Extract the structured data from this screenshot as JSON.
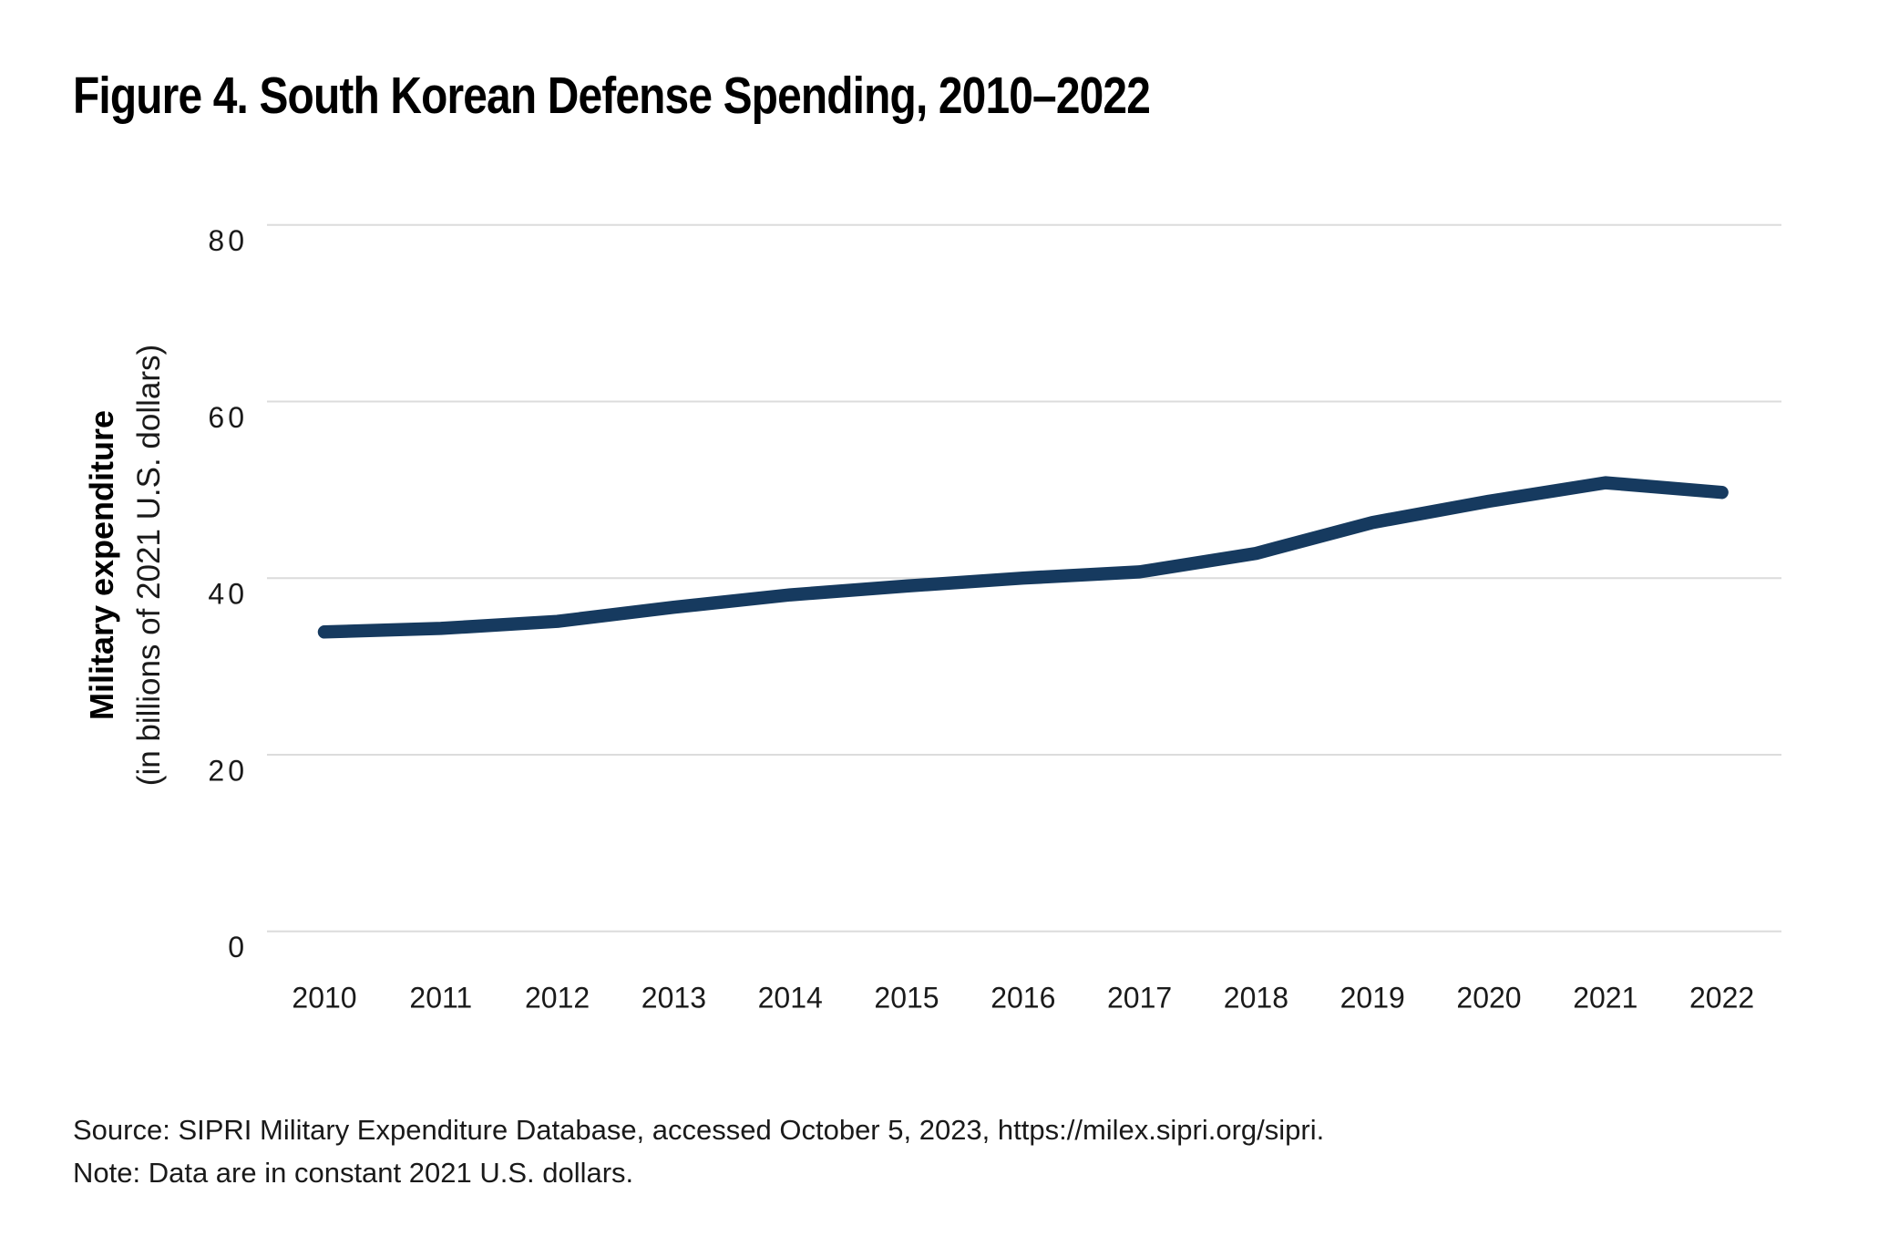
{
  "figure": {
    "title": "Figure 4. South Korean Defense Spending, 2010–2022",
    "source": "Source: SIPRI Military Expenditure Database, accessed October 5, 2023, https://milex.sipri.org/sipri.",
    "note": "Note: Data are in constant 2021 U.S. dollars."
  },
  "chart_data": {
    "type": "line",
    "title": "Figure 4. South Korean Defense Spending, 2010–2022",
    "x": [
      2010,
      2011,
      2012,
      2013,
      2014,
      2015,
      2016,
      2017,
      2018,
      2019,
      2020,
      2021,
      2022
    ],
    "series": [
      {
        "name": "South Korean military expenditure",
        "values": [
          33.9,
          34.3,
          35.1,
          36.7,
          38.1,
          39.1,
          40.0,
          40.7,
          42.8,
          46.3,
          48.7,
          50.8,
          49.7
        ]
      }
    ],
    "ylabel_bold": "Military expenditure",
    "ylabel_sub": "(in billions of 2021 U.S. dollars)",
    "xlabel": "",
    "ylim": [
      0,
      80
    ],
    "yticks": [
      0,
      20,
      40,
      60,
      80
    ],
    "grid": "horizontal-only",
    "legend": "none",
    "line_color": "#163a5f",
    "gridline_color": "#dcdcdc",
    "tick_color": "#1a1a1a"
  }
}
